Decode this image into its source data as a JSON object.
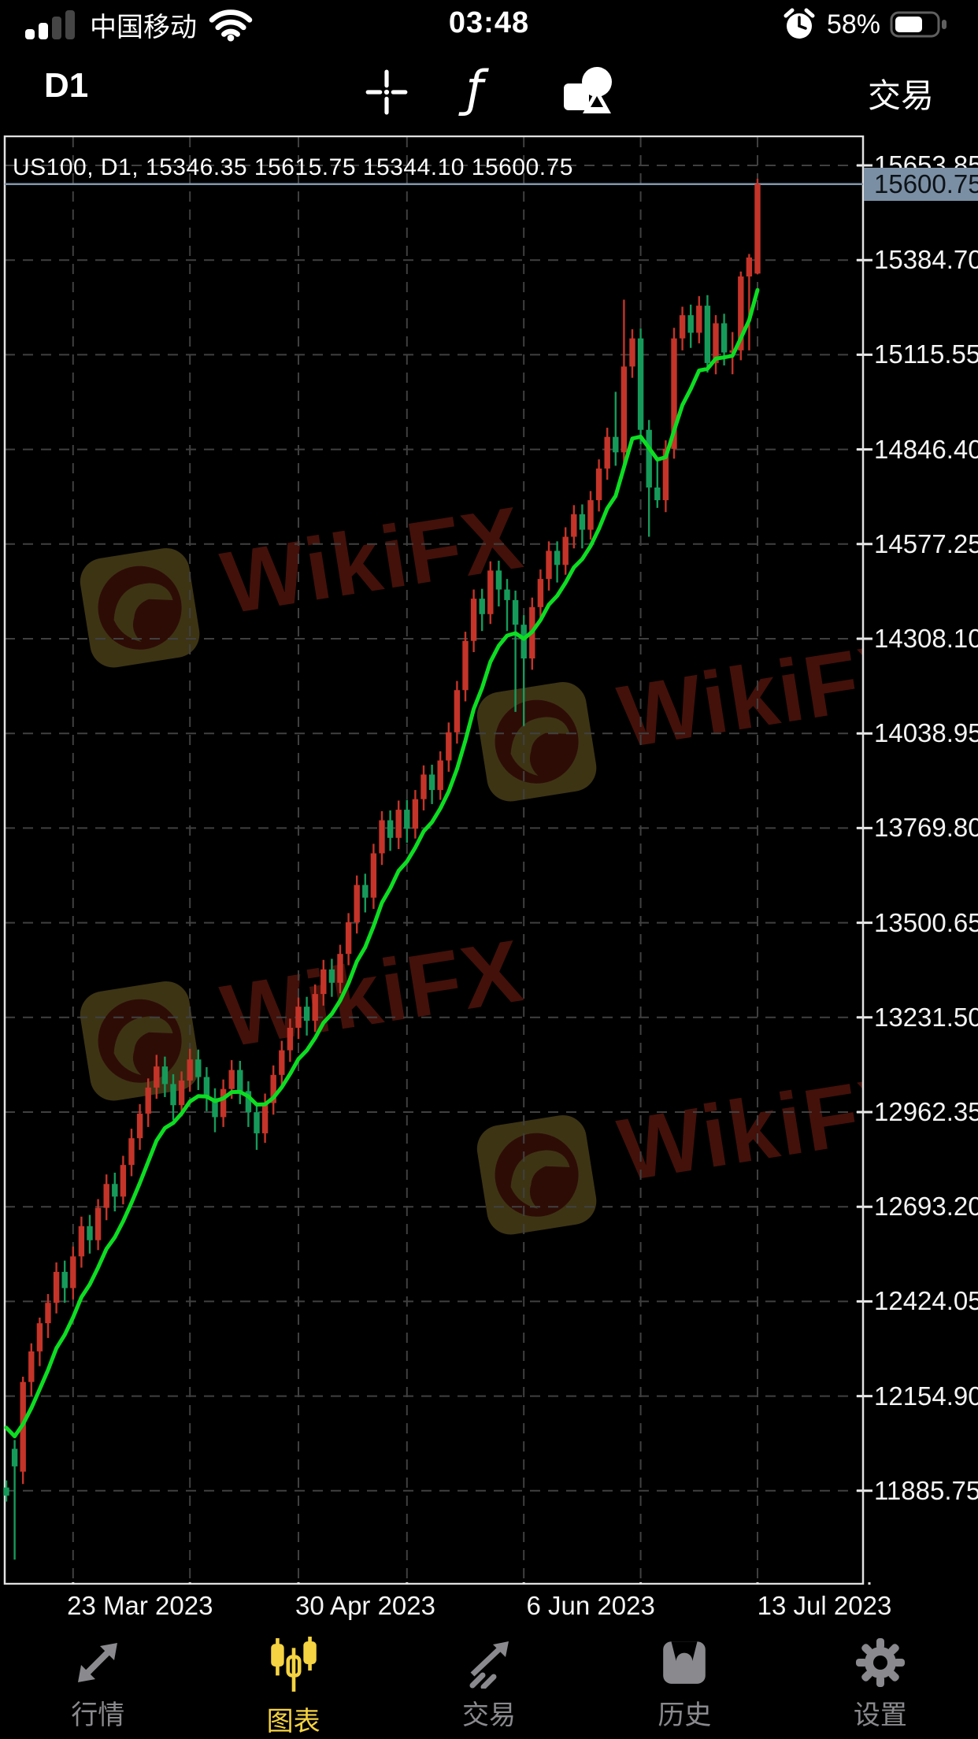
{
  "status_bar": {
    "carrier": "中国移动",
    "time": "03:48",
    "battery": "58%",
    "signal_bars_filled": 2,
    "signal_bars_total": 4
  },
  "toolbar": {
    "timeframe": "D1",
    "indicator_glyph": "ƒ",
    "trade_label": "交易"
  },
  "chart_header": "US100, D1, 15346.35 15615.75 15344.10 15600.75",
  "symbol": "US100",
  "period": "D1",
  "ohlc_display": {
    "open": "15346.35",
    "high": "15615.75",
    "low": "15344.10",
    "close": "15600.75"
  },
  "watermark": {
    "brand": "WikiFX"
  },
  "chart_data": {
    "type": "candlestick",
    "title": "US100, D1",
    "y_ticks": [
      15653.85,
      15384.7,
      15115.55,
      14846.4,
      14577.25,
      14308.1,
      14038.95,
      13769.8,
      13500.65,
      13231.5,
      12962.35,
      12693.2,
      12424.05,
      12154.9,
      11885.75
    ],
    "x_ticks": [
      {
        "label": "23 Mar 2023",
        "bar": 8
      },
      {
        "label": "30 Apr 2023",
        "bar": 35
      },
      {
        "label": "6 Jun 2023",
        "bar": 62
      },
      {
        "label": "13 Jul 2023",
        "bar": 90
      }
    ],
    "grid_bars": [
      8,
      22,
      35,
      48,
      62,
      76,
      90
    ],
    "current_price": 15600.75,
    "bull_color": "#c43429",
    "bear_color": "#169a5a",
    "ma_color": "#0ddd22",
    "ma_period": 8,
    "ma_seed": 12065,
    "price_line_color": "#8296aa",
    "price_label_bg": "#7b8fa4",
    "price_label_fg": "#0d1318",
    "grid_color": "#404040",
    "bars": [
      [
        11895,
        11915,
        11855,
        11872
      ],
      [
        12005,
        12030,
        11690,
        11955
      ],
      [
        11940,
        12210,
        11905,
        12195
      ],
      [
        12195,
        12305,
        12155,
        12282
      ],
      [
        12282,
        12378,
        12240,
        12362
      ],
      [
        12362,
        12445,
        12320,
        12420
      ],
      [
        12420,
        12535,
        12390,
        12508
      ],
      [
        12508,
        12540,
        12420,
        12462
      ],
      [
        12462,
        12580,
        12430,
        12552
      ],
      [
        12552,
        12665,
        12520,
        12638
      ],
      [
        12638,
        12670,
        12560,
        12598
      ],
      [
        12598,
        12715,
        12570,
        12690
      ],
      [
        12690,
        12785,
        12655,
        12758
      ],
      [
        12758,
        12790,
        12680,
        12722
      ],
      [
        12722,
        12838,
        12700,
        12812
      ],
      [
        12812,
        12915,
        12780,
        12888
      ],
      [
        12888,
        12985,
        12855,
        12958
      ],
      [
        12958,
        13058,
        12920,
        13032
      ],
      [
        13032,
        13125,
        13000,
        13092
      ],
      [
        13092,
        13120,
        13005,
        13042
      ],
      [
        13042,
        13070,
        12940,
        12982
      ],
      [
        12982,
        13078,
        12950,
        13052
      ],
      [
        13052,
        13142,
        13020,
        13112
      ],
      [
        13112,
        13140,
        13025,
        13062
      ],
      [
        13062,
        13090,
        12965,
        13002
      ],
      [
        13002,
        13030,
        12905,
        12948
      ],
      [
        12948,
        13055,
        12920,
        13028
      ],
      [
        13028,
        13110,
        13000,
        13082
      ],
      [
        13082,
        13108,
        12985,
        13022
      ],
      [
        13022,
        13050,
        12920,
        12962
      ],
      [
        12962,
        12990,
        12855,
        12902
      ],
      [
        12902,
        13015,
        12875,
        12988
      ],
      [
        12988,
        13095,
        12955,
        13068
      ],
      [
        13068,
        13165,
        13035,
        13138
      ],
      [
        13138,
        13228,
        13105,
        13202
      ],
      [
        13202,
        13288,
        13170,
        13262
      ],
      [
        13262,
        13290,
        13180,
        13222
      ],
      [
        13222,
        13325,
        13190,
        13298
      ],
      [
        13298,
        13395,
        13265,
        13368
      ],
      [
        13368,
        13398,
        13290,
        13330
      ],
      [
        13330,
        13438,
        13300,
        13412
      ],
      [
        13412,
        13528,
        13380,
        13502
      ],
      [
        13502,
        13635,
        13470,
        13608
      ],
      [
        13608,
        13640,
        13530,
        13572
      ],
      [
        13572,
        13725,
        13540,
        13698
      ],
      [
        13698,
        13818,
        13665,
        13792
      ],
      [
        13792,
        13820,
        13705,
        13742
      ],
      [
        13742,
        13848,
        13710,
        13822
      ],
      [
        13822,
        13850,
        13728,
        13768
      ],
      [
        13768,
        13878,
        13740,
        13852
      ],
      [
        13852,
        13948,
        13820,
        13922
      ],
      [
        13922,
        13950,
        13838,
        13878
      ],
      [
        13878,
        13988,
        13850,
        13962
      ],
      [
        13962,
        14070,
        13930,
        14042
      ],
      [
        14042,
        14188,
        14010,
        14162
      ],
      [
        14162,
        14328,
        14130,
        14302
      ],
      [
        14302,
        14448,
        14270,
        14422
      ],
      [
        14422,
        14450,
        14330,
        14378
      ],
      [
        14378,
        14528,
        14350,
        14502
      ],
      [
        14502,
        14530,
        14400,
        14448
      ],
      [
        14448,
        14478,
        14330,
        14418
      ],
      [
        14418,
        14445,
        14100,
        14348
      ],
      [
        14348,
        14375,
        14060,
        14252
      ],
      [
        14252,
        14425,
        14220,
        14398
      ],
      [
        14398,
        14505,
        14365,
        14478
      ],
      [
        14478,
        14585,
        14445,
        14558
      ],
      [
        14558,
        14585,
        14468,
        14518
      ],
      [
        14518,
        14625,
        14490,
        14598
      ],
      [
        14598,
        14688,
        14565,
        14662
      ],
      [
        14662,
        14690,
        14565,
        14618
      ],
      [
        14618,
        14728,
        14590,
        14702
      ],
      [
        14702,
        14818,
        14670,
        14792
      ],
      [
        14792,
        14908,
        14760,
        14882
      ],
      [
        14882,
        15010,
        14800,
        14838
      ],
      [
        14838,
        15272,
        14800,
        15082
      ],
      [
        15082,
        15188,
        15050,
        15162
      ],
      [
        15162,
        15190,
        14860,
        14902
      ],
      [
        14902,
        14930,
        14598,
        14738
      ],
      [
        14738,
        14825,
        14680,
        14702
      ],
      [
        14702,
        14872,
        14668,
        14848
      ],
      [
        14848,
        15192,
        14820,
        15162
      ],
      [
        15162,
        15252,
        15128,
        15228
      ],
      [
        15228,
        15258,
        15135,
        15178
      ],
      [
        15178,
        15282,
        15148,
        15255
      ],
      [
        15255,
        15285,
        15065,
        15092
      ],
      [
        15092,
        15228,
        15060,
        15205
      ],
      [
        15205,
        15232,
        15085,
        15122
      ],
      [
        15122,
        15180,
        15060,
        15128
      ],
      [
        15128,
        15352,
        15100,
        15338
      ],
      [
        15338,
        15402,
        15128,
        15392
      ],
      [
        15346.35,
        15615.75,
        15344.1,
        15600.75
      ]
    ]
  },
  "tab_bar": {
    "active_color": "#f5d342",
    "inactive_color": "#8a8a8e",
    "items": [
      {
        "label": "行情",
        "icon": "quotes-icon",
        "active": false
      },
      {
        "label": "图表",
        "icon": "charts-icon",
        "active": true
      },
      {
        "label": "交易",
        "icon": "trade-icon",
        "active": false
      },
      {
        "label": "历史",
        "icon": "history-icon",
        "active": false
      },
      {
        "label": "设置",
        "icon": "settings-icon",
        "active": false
      }
    ]
  }
}
